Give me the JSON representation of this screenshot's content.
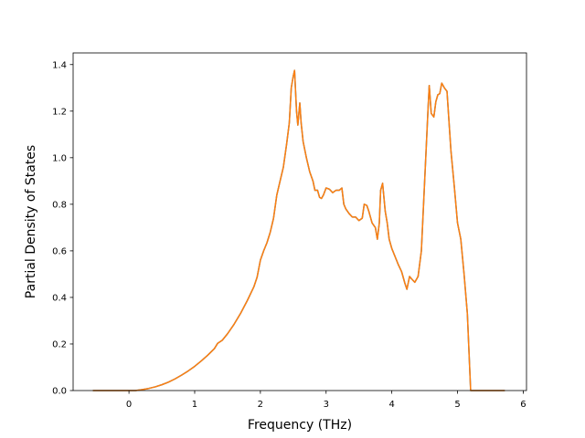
{
  "chart_data": {
    "type": "line",
    "title": "",
    "xlabel": "Frequency (THz)",
    "ylabel": "Partial Density of States",
    "xlim": [
      -0.85,
      6.05
    ],
    "ylim": [
      0,
      1.45
    ],
    "x_ticks": [
      0,
      1,
      2,
      3,
      4,
      5,
      6
    ],
    "y_ticks": [
      0.0,
      0.2,
      0.4,
      0.6,
      0.8,
      1.0,
      1.2,
      1.4
    ],
    "x_tick_labels": [
      "0",
      "1",
      "2",
      "3",
      "4",
      "5",
      "6"
    ],
    "y_tick_labels": [
      "0.0",
      "0.2",
      "0.4",
      "0.6",
      "0.8",
      "1.0",
      "1.2",
      "1.4"
    ],
    "grid": false,
    "legend": "none",
    "series": [
      {
        "color": "#1f77b4",
        "points": [
          [
            -0.55,
            0.0
          ],
          [
            -0.3,
            0.0
          ],
          [
            0.0,
            0.0
          ],
          [
            0.1,
            0.0
          ],
          [
            0.2,
            0.004
          ],
          [
            0.3,
            0.009
          ],
          [
            0.4,
            0.016
          ],
          [
            0.5,
            0.025
          ],
          [
            0.6,
            0.036
          ],
          [
            0.7,
            0.05
          ],
          [
            0.8,
            0.066
          ],
          [
            0.9,
            0.084
          ],
          [
            1.0,
            0.104
          ],
          [
            1.1,
            0.127
          ],
          [
            1.2,
            0.152
          ],
          [
            1.3,
            0.18
          ],
          [
            1.35,
            0.203
          ],
          [
            1.42,
            0.216
          ],
          [
            1.5,
            0.244
          ],
          [
            1.6,
            0.285
          ],
          [
            1.7,
            0.332
          ],
          [
            1.8,
            0.386
          ],
          [
            1.9,
            0.445
          ],
          [
            1.95,
            0.487
          ],
          [
            2.0,
            0.56
          ],
          [
            2.05,
            0.6
          ],
          [
            2.1,
            0.635
          ],
          [
            2.15,
            0.68
          ],
          [
            2.2,
            0.74
          ],
          [
            2.25,
            0.84
          ],
          [
            2.3,
            0.9
          ],
          [
            2.35,
            0.96
          ],
          [
            2.4,
            1.06
          ],
          [
            2.44,
            1.15
          ],
          [
            2.47,
            1.3
          ],
          [
            2.5,
            1.35
          ],
          [
            2.52,
            1.375
          ],
          [
            2.55,
            1.2
          ],
          [
            2.57,
            1.14
          ],
          [
            2.6,
            1.235
          ],
          [
            2.62,
            1.15
          ],
          [
            2.65,
            1.07
          ],
          [
            2.7,
            1.0
          ],
          [
            2.75,
            0.94
          ],
          [
            2.8,
            0.9
          ],
          [
            2.83,
            0.86
          ],
          [
            2.87,
            0.86
          ],
          [
            2.9,
            0.83
          ],
          [
            2.93,
            0.825
          ],
          [
            2.96,
            0.84
          ],
          [
            3.0,
            0.87
          ],
          [
            3.05,
            0.865
          ],
          [
            3.1,
            0.85
          ],
          [
            3.15,
            0.86
          ],
          [
            3.2,
            0.86
          ],
          [
            3.24,
            0.87
          ],
          [
            3.27,
            0.8
          ],
          [
            3.3,
            0.78
          ],
          [
            3.35,
            0.76
          ],
          [
            3.4,
            0.745
          ],
          [
            3.45,
            0.745
          ],
          [
            3.5,
            0.73
          ],
          [
            3.55,
            0.74
          ],
          [
            3.58,
            0.8
          ],
          [
            3.62,
            0.795
          ],
          [
            3.65,
            0.77
          ],
          [
            3.7,
            0.72
          ],
          [
            3.75,
            0.7
          ],
          [
            3.78,
            0.65
          ],
          [
            3.81,
            0.72
          ],
          [
            3.83,
            0.86
          ],
          [
            3.86,
            0.89
          ],
          [
            3.9,
            0.77
          ],
          [
            3.93,
            0.72
          ],
          [
            3.96,
            0.65
          ],
          [
            4.0,
            0.61
          ],
          [
            4.05,
            0.575
          ],
          [
            4.1,
            0.54
          ],
          [
            4.15,
            0.51
          ],
          [
            4.2,
            0.46
          ],
          [
            4.23,
            0.435
          ],
          [
            4.27,
            0.49
          ],
          [
            4.3,
            0.48
          ],
          [
            4.35,
            0.465
          ],
          [
            4.4,
            0.49
          ],
          [
            4.45,
            0.6
          ],
          [
            4.5,
            0.9
          ],
          [
            4.55,
            1.2
          ],
          [
            4.57,
            1.31
          ],
          [
            4.6,
            1.19
          ],
          [
            4.64,
            1.175
          ],
          [
            4.67,
            1.24
          ],
          [
            4.7,
            1.27
          ],
          [
            4.73,
            1.275
          ],
          [
            4.76,
            1.32
          ],
          [
            4.8,
            1.3
          ],
          [
            4.84,
            1.285
          ],
          [
            4.9,
            1.03
          ],
          [
            4.95,
            0.88
          ],
          [
            5.0,
            0.72
          ],
          [
            5.05,
            0.65
          ],
          [
            5.1,
            0.5
          ],
          [
            5.15,
            0.33
          ],
          [
            5.2,
            0.0
          ],
          [
            5.4,
            0.0
          ],
          [
            5.72,
            0.0
          ]
        ]
      },
      {
        "color": "#ff7f0e",
        "points": [
          [
            -0.55,
            0.0
          ],
          [
            -0.3,
            0.0
          ],
          [
            0.0,
            0.0
          ],
          [
            0.1,
            0.0
          ],
          [
            0.2,
            0.004
          ],
          [
            0.3,
            0.009
          ],
          [
            0.4,
            0.016
          ],
          [
            0.5,
            0.025
          ],
          [
            0.6,
            0.036
          ],
          [
            0.7,
            0.05
          ],
          [
            0.8,
            0.066
          ],
          [
            0.9,
            0.084
          ],
          [
            1.0,
            0.104
          ],
          [
            1.1,
            0.127
          ],
          [
            1.2,
            0.152
          ],
          [
            1.3,
            0.18
          ],
          [
            1.35,
            0.203
          ],
          [
            1.42,
            0.216
          ],
          [
            1.5,
            0.244
          ],
          [
            1.6,
            0.285
          ],
          [
            1.7,
            0.332
          ],
          [
            1.8,
            0.386
          ],
          [
            1.9,
            0.445
          ],
          [
            1.95,
            0.487
          ],
          [
            2.0,
            0.56
          ],
          [
            2.05,
            0.6
          ],
          [
            2.1,
            0.635
          ],
          [
            2.15,
            0.68
          ],
          [
            2.2,
            0.74
          ],
          [
            2.25,
            0.84
          ],
          [
            2.3,
            0.9
          ],
          [
            2.35,
            0.96
          ],
          [
            2.4,
            1.06
          ],
          [
            2.44,
            1.15
          ],
          [
            2.47,
            1.3
          ],
          [
            2.5,
            1.35
          ],
          [
            2.52,
            1.375
          ],
          [
            2.55,
            1.2
          ],
          [
            2.57,
            1.14
          ],
          [
            2.6,
            1.235
          ],
          [
            2.62,
            1.15
          ],
          [
            2.65,
            1.07
          ],
          [
            2.7,
            1.0
          ],
          [
            2.75,
            0.94
          ],
          [
            2.8,
            0.9
          ],
          [
            2.83,
            0.86
          ],
          [
            2.87,
            0.86
          ],
          [
            2.9,
            0.83
          ],
          [
            2.93,
            0.825
          ],
          [
            2.96,
            0.84
          ],
          [
            3.0,
            0.87
          ],
          [
            3.05,
            0.865
          ],
          [
            3.1,
            0.85
          ],
          [
            3.15,
            0.86
          ],
          [
            3.2,
            0.86
          ],
          [
            3.24,
            0.87
          ],
          [
            3.27,
            0.8
          ],
          [
            3.3,
            0.78
          ],
          [
            3.35,
            0.76
          ],
          [
            3.4,
            0.745
          ],
          [
            3.45,
            0.745
          ],
          [
            3.5,
            0.73
          ],
          [
            3.55,
            0.74
          ],
          [
            3.58,
            0.8
          ],
          [
            3.62,
            0.795
          ],
          [
            3.65,
            0.77
          ],
          [
            3.7,
            0.72
          ],
          [
            3.75,
            0.7
          ],
          [
            3.78,
            0.65
          ],
          [
            3.81,
            0.72
          ],
          [
            3.83,
            0.86
          ],
          [
            3.86,
            0.89
          ],
          [
            3.9,
            0.77
          ],
          [
            3.93,
            0.72
          ],
          [
            3.96,
            0.65
          ],
          [
            4.0,
            0.61
          ],
          [
            4.05,
            0.575
          ],
          [
            4.1,
            0.54
          ],
          [
            4.15,
            0.51
          ],
          [
            4.2,
            0.46
          ],
          [
            4.23,
            0.435
          ],
          [
            4.27,
            0.49
          ],
          [
            4.3,
            0.48
          ],
          [
            4.35,
            0.465
          ],
          [
            4.4,
            0.49
          ],
          [
            4.45,
            0.6
          ],
          [
            4.5,
            0.9
          ],
          [
            4.55,
            1.2
          ],
          [
            4.57,
            1.31
          ],
          [
            4.6,
            1.19
          ],
          [
            4.64,
            1.175
          ],
          [
            4.67,
            1.24
          ],
          [
            4.7,
            1.27
          ],
          [
            4.73,
            1.275
          ],
          [
            4.76,
            1.32
          ],
          [
            4.8,
            1.3
          ],
          [
            4.84,
            1.285
          ],
          [
            4.9,
            1.03
          ],
          [
            4.95,
            0.88
          ],
          [
            5.0,
            0.72
          ],
          [
            5.05,
            0.65
          ],
          [
            5.1,
            0.5
          ],
          [
            5.15,
            0.33
          ],
          [
            5.2,
            0.0
          ],
          [
            5.4,
            0.0
          ],
          [
            5.72,
            0.0
          ]
        ]
      }
    ]
  }
}
